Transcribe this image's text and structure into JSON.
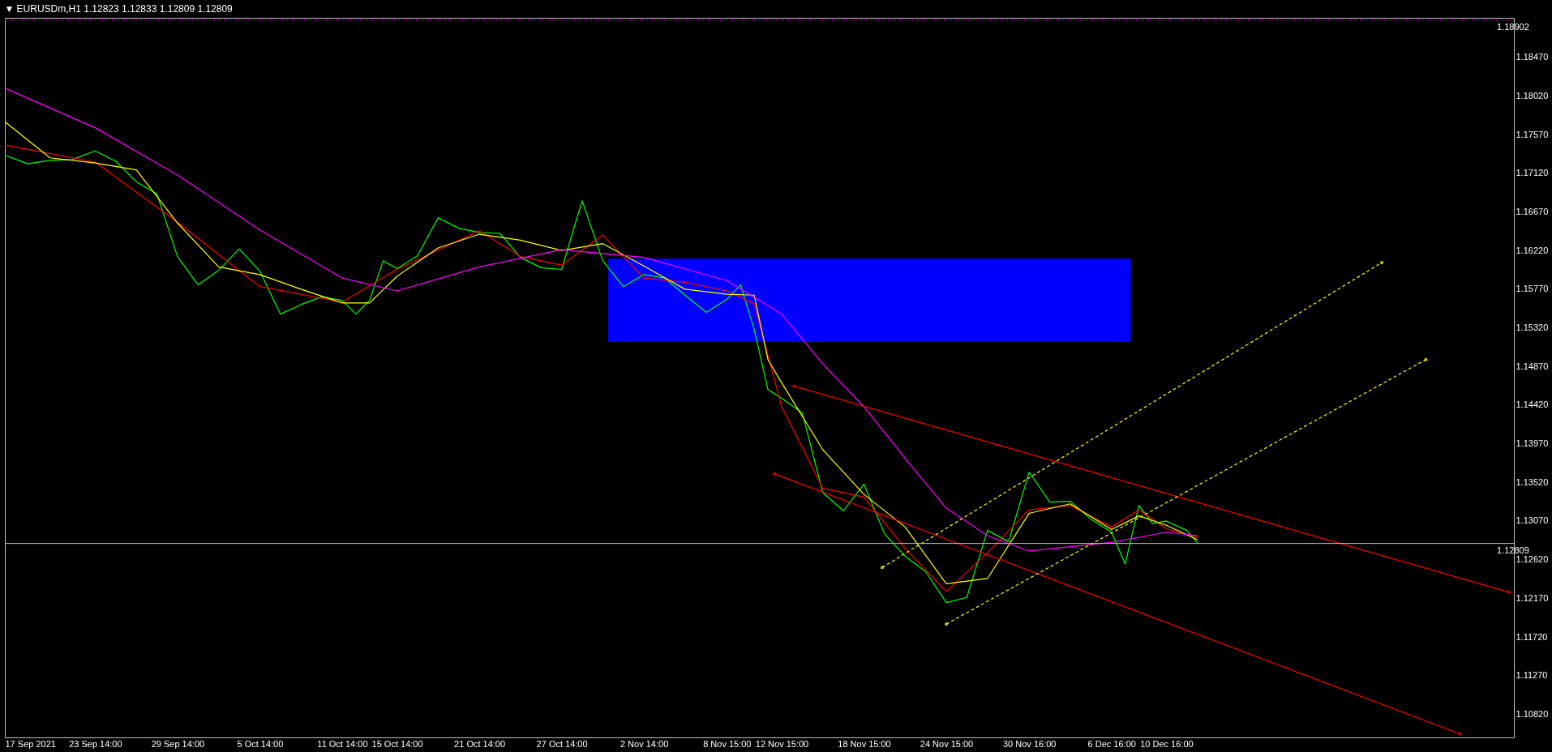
{
  "chart_data": {
    "type": "line",
    "title": "▼ EURUSDm,H1  1.12823 1.12833 1.12809 1.12809",
    "xlim": [
      "2021-09-17T00:00",
      "2022-01-05T00:00"
    ],
    "ylim": [
      1.1055,
      1.1893
    ],
    "xticks": [
      {
        "value": "2021-09-17T00:00",
        "label": "17 Sep 2021"
      },
      {
        "value": "2021-09-23T14:00",
        "label": "23 Sep 14:00"
      },
      {
        "value": "2021-09-29T14:00",
        "label": "29 Sep 14:00"
      },
      {
        "value": "2021-10-05T14:00",
        "label": "5 Oct 14:00"
      },
      {
        "value": "2021-10-11T14:00",
        "label": "11 Oct 14:00"
      },
      {
        "value": "2021-10-15T14:00",
        "label": "15 Oct 14:00"
      },
      {
        "value": "2021-10-21T14:00",
        "label": "21 Oct 14:00"
      },
      {
        "value": "2021-10-27T14:00",
        "label": "27 Oct 14:00"
      },
      {
        "value": "2021-11-02T14:00",
        "label": "2 Nov 14:00"
      },
      {
        "value": "2021-11-08T15:00",
        "label": "8 Nov 15:00"
      },
      {
        "value": "2021-11-12T15:00",
        "label": "12 Nov 15:00"
      },
      {
        "value": "2021-11-18T15:00",
        "label": "18 Nov 15:00"
      },
      {
        "value": "2021-11-24T15:00",
        "label": "24 Nov 15:00"
      },
      {
        "value": "2021-11-30T16:00",
        "label": "30 Nov 16:00"
      },
      {
        "value": "2021-12-06T16:00",
        "label": "6 Dec 16:00"
      },
      {
        "value": "2021-12-10T16:00",
        "label": "10 Dec 16:00"
      }
    ],
    "yticks": [
      {
        "value": 1.1082,
        "label": "1.10820"
      },
      {
        "value": 1.1127,
        "label": "1.11270"
      },
      {
        "value": 1.1172,
        "label": "1.11720"
      },
      {
        "value": 1.1217,
        "label": "1.12170"
      },
      {
        "value": 1.1262,
        "label": "1.12620"
      },
      {
        "value": 1.1307,
        "label": "1.13070"
      },
      {
        "value": 1.1352,
        "label": "1.13520"
      },
      {
        "value": 1.1397,
        "label": "1.13970"
      },
      {
        "value": 1.1442,
        "label": "1.14420"
      },
      {
        "value": 1.1487,
        "label": "1.14870"
      },
      {
        "value": 1.1532,
        "label": "1.15320"
      },
      {
        "value": 1.1577,
        "label": "1.15770"
      },
      {
        "value": 1.1622,
        "label": "1.16220"
      },
      {
        "value": 1.1667,
        "label": "1.16670"
      },
      {
        "value": 1.1712,
        "label": "1.17120"
      },
      {
        "value": 1.1757,
        "label": "1.17570"
      },
      {
        "value": 1.1802,
        "label": "1.18020"
      },
      {
        "value": 1.1847,
        "label": "1.18470"
      }
    ],
    "grid": false,
    "ref_lines": [
      {
        "axis": "y",
        "value": 1.12809,
        "label": "1.12809",
        "color": "#c0c0c0",
        "line_style": "solid"
      },
      {
        "axis": "y",
        "value": 1.18902,
        "label": "1.18902",
        "color": "#ff00ff",
        "line_style": "dotted"
      }
    ],
    "series": [
      {
        "type": "area",
        "color": "#0000ff",
        "x": [
          "2021-10-31T00:00",
          "2021-10-31T00:00",
          "2021-12-08T01:00",
          "2021-12-08T01:00",
          "2021-10-31T00:00"
        ],
        "values": [
          1.1516,
          1.1612,
          1.1612,
          1.1516,
          1.1516
        ]
      },
      {
        "color": "#ff00ff",
        "x": [
          "2021-09-17T00:00",
          "2021-09-23T14:00",
          "2021-09-29T14:00",
          "2021-10-05T14:00",
          "2021-10-11T14:00",
          "2021-10-15T14:00",
          "2021-10-21T14:00",
          "2021-10-27T14:00",
          "2021-11-02T14:00",
          "2021-11-08T15:00",
          "2021-11-12T15:00",
          "2021-11-15T15:00",
          "2021-11-18T15:00",
          "2021-11-21T15:00",
          "2021-11-24T15:00",
          "2021-11-27T15:00",
          "2021-11-30T16:00",
          "2021-12-06T16:00",
          "2021-12-10T16:00",
          "2021-12-12T23:00"
        ],
        "values": [
          1.1811,
          1.1765,
          1.171,
          1.1646,
          1.159,
          1.1575,
          1.1603,
          1.1623,
          1.1614,
          1.1587,
          1.1548,
          1.149,
          1.144,
          1.138,
          1.1322,
          1.129,
          1.1272,
          1.1282,
          1.1294,
          1.129
        ]
      },
      {
        "color": "#00ff00",
        "x": [
          "2021-09-17T00:00",
          "2021-09-18T16:00",
          "2021-09-20T07:00",
          "2021-09-21T22:00",
          "2021-09-23T14:00",
          "2021-09-25T02:00",
          "2021-09-26T14:00",
          "2021-09-28T02:00",
          "2021-09-29T14:00",
          "2021-10-01T02:00",
          "2021-10-02T14:00",
          "2021-10-04T02:00",
          "2021-10-05T14:00",
          "2021-10-07T02:00",
          "2021-10-08T14:00",
          "2021-10-10T02:00",
          "2021-10-11T14:00",
          "2021-10-12T14:00",
          "2021-10-13T14:00",
          "2021-10-14T14:00",
          "2021-10-15T14:00",
          "2021-10-17T02:00",
          "2021-10-18T14:00",
          "2021-10-20T02:00",
          "2021-10-21T14:00",
          "2021-10-23T02:00",
          "2021-10-24T14:00",
          "2021-10-26T02:00",
          "2021-10-27T14:00",
          "2021-10-29T02:00",
          "2021-10-30T14:00",
          "2021-11-01T02:00",
          "2021-11-02T14:00",
          "2021-11-04T02:00",
          "2021-11-05T14:00",
          "2021-11-07T03:00",
          "2021-11-08T15:00",
          "2021-11-09T15:00",
          "2021-11-10T15:00",
          "2021-11-11T15:00",
          "2021-11-12T15:00",
          "2021-11-14T03:00",
          "2021-11-15T15:00",
          "2021-11-17T03:00",
          "2021-11-18T15:00",
          "2021-11-20T03:00",
          "2021-11-21T15:00",
          "2021-11-23T03:00",
          "2021-11-24T15:00",
          "2021-11-26T03:00",
          "2021-11-27T15:00",
          "2021-11-29T04:00",
          "2021-11-30T16:00",
          "2021-12-02T04:00",
          "2021-12-03T16:00",
          "2021-12-05T04:00",
          "2021-12-06T16:00",
          "2021-12-07T16:00",
          "2021-12-08T16:00",
          "2021-12-09T16:00",
          "2021-12-10T16:00",
          "2021-12-12T04:00",
          "2021-12-12T23:00"
        ],
        "values": [
          1.1733,
          1.1723,
          1.1727,
          1.1728,
          1.1738,
          1.1726,
          1.1702,
          1.1688,
          1.1615,
          1.1582,
          1.1599,
          1.1624,
          1.1598,
          1.1548,
          1.1559,
          1.1568,
          1.1564,
          1.1548,
          1.1564,
          1.161,
          1.1601,
          1.1616,
          1.166,
          1.1648,
          1.1643,
          1.1642,
          1.1614,
          1.1602,
          1.16,
          1.168,
          1.161,
          1.158,
          1.1594,
          1.159,
          1.157,
          1.155,
          1.1565,
          1.1582,
          1.153,
          1.146,
          1.145,
          1.1433,
          1.134,
          1.1319,
          1.135,
          1.1292,
          1.1266,
          1.1248,
          1.1212,
          1.1218,
          1.1296,
          1.1283,
          1.1364,
          1.1329,
          1.133,
          1.1309,
          1.1294,
          1.1257,
          1.1325,
          1.1304,
          1.1307,
          1.1296,
          1.1281
        ]
      },
      {
        "color": "#ff0000",
        "x": [
          "2021-09-17T00:00",
          "2021-09-23T14:00",
          "2021-09-29T14:00",
          "2021-10-05T14:00",
          "2021-10-11T14:00",
          "2021-10-15T14:00",
          "2021-10-21T14:00",
          "2021-10-24T14:00",
          "2021-10-27T14:00",
          "2021-10-30T14:00",
          "2021-11-02T14:00",
          "2021-11-05T14:00",
          "2021-11-08T15:00",
          "2021-11-10T15:00",
          "2021-11-12T15:00",
          "2021-11-15T15:00",
          "2021-11-18T15:00",
          "2021-11-21T15:00",
          "2021-11-24T15:00",
          "2021-11-27T15:00",
          "2021-11-30T16:00",
          "2021-12-03T16:00",
          "2021-12-06T16:00",
          "2021-12-08T16:00",
          "2021-12-10T16:00",
          "2021-12-12T23:00"
        ],
        "values": [
          1.1745,
          1.1725,
          1.1655,
          1.158,
          1.1562,
          1.16,
          1.1645,
          1.1615,
          1.1605,
          1.164,
          1.159,
          1.1585,
          1.1575,
          1.156,
          1.144,
          1.1345,
          1.1335,
          1.1275,
          1.1225,
          1.127,
          1.132,
          1.1325,
          1.13,
          1.132,
          1.1298,
          1.1288
        ]
      },
      {
        "color": "#ffff00",
        "x": [
          "2021-09-17T00:00",
          "2021-09-20T07:00",
          "2021-09-23T14:00",
          "2021-09-26T14:00",
          "2021-09-29T14:00",
          "2021-10-02T14:00",
          "2021-10-05T14:00",
          "2021-10-08T14:00",
          "2021-10-11T14:00",
          "2021-10-13T14:00",
          "2021-10-15T14:00",
          "2021-10-18T14:00",
          "2021-10-21T14:00",
          "2021-10-24T14:00",
          "2021-10-27T14:00",
          "2021-10-30T14:00",
          "2021-11-02T14:00",
          "2021-11-05T14:00",
          "2021-11-08T15:00",
          "2021-11-10T15:00",
          "2021-11-11T15:00",
          "2021-11-12T15:00",
          "2021-11-15T15:00",
          "2021-11-18T15:00",
          "2021-11-21T15:00",
          "2021-11-24T15:00",
          "2021-11-27T15:00",
          "2021-11-30T16:00",
          "2021-12-03T16:00",
          "2021-12-06T16:00",
          "2021-12-08T16:00",
          "2021-12-10T16:00",
          "2021-12-12T23:00"
        ],
        "values": [
          1.1772,
          1.173,
          1.1724,
          1.1716,
          1.1654,
          1.1603,
          1.1594,
          1.1577,
          1.1561,
          1.1561,
          1.1592,
          1.1625,
          1.1641,
          1.1634,
          1.1622,
          1.163,
          1.1604,
          1.1577,
          1.1571,
          1.157,
          1.1495,
          1.1468,
          1.139,
          1.1338,
          1.13,
          1.1234,
          1.124,
          1.1316,
          1.1327,
          1.1297,
          1.1313,
          1.1302,
          1.1285
        ]
      },
      {
        "color": "#ff0000",
        "marker": "square",
        "line_style": "solid",
        "x": [
          "2021-11-13T13:00",
          "2022-01-04T16:00"
        ],
        "values": [
          1.1464,
          1.1224
        ]
      },
      {
        "color": "#ff0000",
        "marker": "square",
        "line_style": "solid",
        "x": [
          "2021-11-12T02:00",
          "2022-01-01T02:00"
        ],
        "values": [
          1.1362,
          1.1059
        ]
      },
      {
        "color": "#ffff00",
        "marker": "square",
        "line_style": "dashed",
        "x": [
          "2021-11-19T23:00",
          "2021-12-26T09:00"
        ],
        "values": [
          1.1253,
          1.1608
        ]
      },
      {
        "color": "#ffff00",
        "marker": "square",
        "line_style": "dashed",
        "x": [
          "2021-11-24T15:00",
          "2021-12-29T14:00"
        ],
        "values": [
          1.1187,
          1.1495
        ]
      }
    ]
  }
}
